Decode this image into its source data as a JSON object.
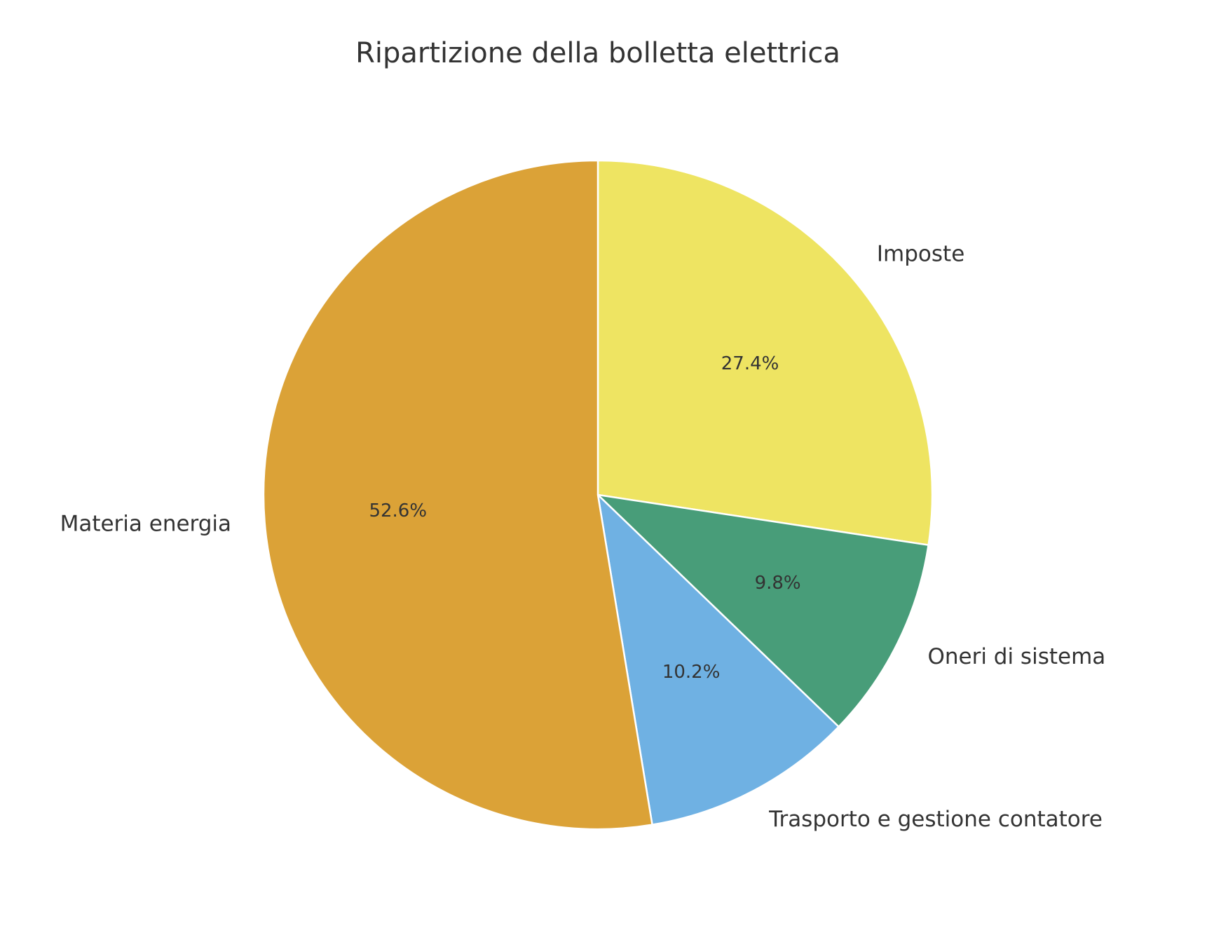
{
  "chart_data": {
    "type": "pie",
    "title": "Ripartizione della bolletta elettrica",
    "categories": [
      "Imposte",
      "Oneri di sistema",
      "Trasporto e gestione contatore",
      "Materia energia"
    ],
    "values": [
      27.4,
      9.8,
      10.2,
      52.6
    ],
    "value_labels": [
      "27.4%",
      "9.8%",
      "10.2%",
      "52.6%"
    ],
    "colors": [
      "#eee462",
      "#489d79",
      "#6fb1e3",
      "#dba237"
    ]
  }
}
